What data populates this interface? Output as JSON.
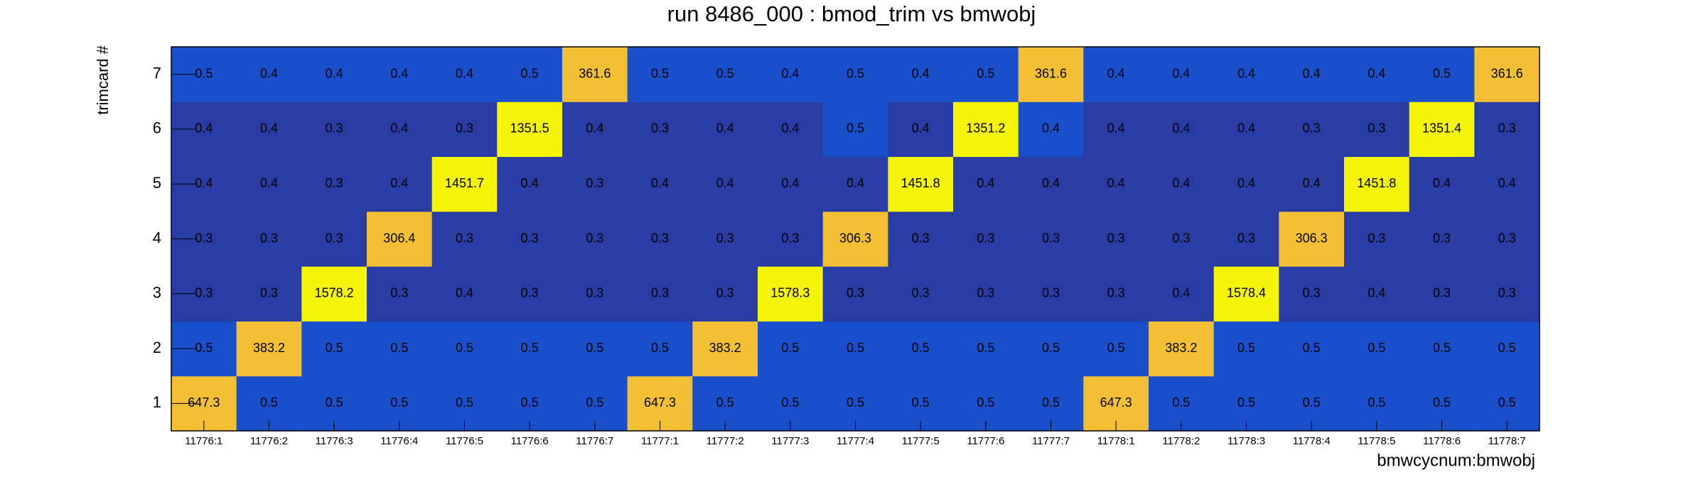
{
  "chart_data": {
    "type": "heatmap",
    "title": "run 8486_000 : bmod_trim vs bmwobj",
    "x_label": "bmwcycnum:bmwobj",
    "y_label": "trimcard #",
    "categories": [
      "11776:1",
      "11776:2",
      "11776:3",
      "11776:4",
      "11776:5",
      "11776:6",
      "11776:7",
      "11777:1",
      "11777:2",
      "11777:3",
      "11777:4",
      "11777:5",
      "11777:6",
      "11777:7",
      "11778:1",
      "11778:2",
      "11778:3",
      "11778:4",
      "11778:5",
      "11778:6",
      "11778:7"
    ],
    "y_categories": [
      1,
      2,
      3,
      4,
      5,
      6,
      7
    ],
    "values": [
      [
        647.3,
        0.5,
        0.5,
        0.5,
        0.5,
        0.5,
        0.5,
        647.3,
        0.5,
        0.5,
        0.5,
        0.5,
        0.5,
        0.5,
        647.3,
        0.5,
        0.5,
        0.5,
        0.5,
        0.5,
        0.5
      ],
      [
        0.5,
        383.2,
        0.5,
        0.5,
        0.5,
        0.5,
        0.5,
        0.5,
        383.2,
        0.5,
        0.5,
        0.5,
        0.5,
        0.5,
        0.5,
        383.2,
        0.5,
        0.5,
        0.5,
        0.5,
        0.5
      ],
      [
        0.3,
        0.3,
        1578.2,
        0.3,
        0.4,
        0.3,
        0.3,
        0.3,
        0.3,
        1578.3,
        0.3,
        0.3,
        0.3,
        0.3,
        0.3,
        0.4,
        1578.4,
        0.3,
        0.4,
        0.3,
        0.3
      ],
      [
        0.3,
        0.3,
        0.3,
        306.4,
        0.3,
        0.3,
        0.3,
        0.3,
        0.3,
        0.3,
        306.3,
        0.3,
        0.3,
        0.3,
        0.3,
        0.3,
        0.3,
        306.3,
        0.3,
        0.3,
        0.3
      ],
      [
        0.4,
        0.4,
        0.3,
        0.4,
        1451.7,
        0.4,
        0.3,
        0.4,
        0.4,
        0.4,
        0.4,
        1451.8,
        0.4,
        0.4,
        0.4,
        0.4,
        0.4,
        0.4,
        1451.8,
        0.4,
        0.4
      ],
      [
        0.4,
        0.4,
        0.3,
        0.4,
        0.3,
        1351.5,
        0.4,
        0.3,
        0.4,
        0.4,
        0.5,
        0.4,
        1351.2,
        0.4,
        0.4,
        0.4,
        0.4,
        0.3,
        0.3,
        1351.4,
        0.3
      ],
      [
        0.5,
        0.4,
        0.4,
        0.4,
        0.4,
        0.5,
        361.6,
        0.5,
        0.5,
        0.4,
        0.5,
        0.4,
        0.5,
        361.6,
        0.4,
        0.4,
        0.4,
        0.4,
        0.4,
        0.5,
        361.6
      ]
    ],
    "colors": [
      [
        "#f3c035",
        "#1a4fcc",
        "#1a4fcc",
        "#1a4fcc",
        "#1a4fcc",
        "#1a4fcc",
        "#1a4fcc",
        "#f3c035",
        "#1a4fcc",
        "#1a4fcc",
        "#1a4fcc",
        "#1a4fcc",
        "#1a4fcc",
        "#1a4fcc",
        "#f3c035",
        "#1a4fcc",
        "#1a4fcc",
        "#1a4fcc",
        "#1a4fcc",
        "#1a4fcc",
        "#1a4fcc"
      ],
      [
        "#1a4fcc",
        "#f3c035",
        "#1a4fcc",
        "#1a4fcc",
        "#1a4fcc",
        "#1a4fcc",
        "#1a4fcc",
        "#1a4fcc",
        "#f3c035",
        "#1a4fcc",
        "#1a4fcc",
        "#1a4fcc",
        "#1a4fcc",
        "#1a4fcc",
        "#1a4fcc",
        "#f3c035",
        "#1a4fcc",
        "#1a4fcc",
        "#1a4fcc",
        "#1a4fcc",
        "#1a4fcc"
      ],
      [
        "#283ca3",
        "#283ca3",
        "#f5f50a",
        "#283ca3",
        "#283ca3",
        "#283ca3",
        "#283ca3",
        "#283ca3",
        "#283ca3",
        "#f5f50a",
        "#283ca3",
        "#283ca3",
        "#283ca3",
        "#283ca3",
        "#283ca3",
        "#283ca3",
        "#f5f50a",
        "#283ca3",
        "#283ca3",
        "#283ca3",
        "#283ca3"
      ],
      [
        "#283ca3",
        "#283ca3",
        "#283ca3",
        "#f3c035",
        "#283ca3",
        "#283ca3",
        "#283ca3",
        "#283ca3",
        "#283ca3",
        "#283ca3",
        "#f3c035",
        "#283ca3",
        "#283ca3",
        "#283ca3",
        "#283ca3",
        "#283ca3",
        "#283ca3",
        "#f3c035",
        "#283ca3",
        "#283ca3",
        "#283ca3"
      ],
      [
        "#283ca3",
        "#283ca3",
        "#283ca3",
        "#283ca3",
        "#f5f50a",
        "#283ca3",
        "#283ca3",
        "#283ca3",
        "#283ca3",
        "#283ca3",
        "#283ca3",
        "#f5f50a",
        "#283ca3",
        "#283ca3",
        "#283ca3",
        "#283ca3",
        "#283ca3",
        "#283ca3",
        "#f5f50a",
        "#283ca3",
        "#283ca3"
      ],
      [
        "#283ca3",
        "#283ca3",
        "#283ca3",
        "#283ca3",
        "#283ca3",
        "#f5f50a",
        "#283ca3",
        "#283ca3",
        "#283ca3",
        "#283ca3",
        "#1a4fcc",
        "#283ca3",
        "#f5f50a",
        "#1a4fcc",
        "#283ca3",
        "#283ca3",
        "#283ca3",
        "#283ca3",
        "#283ca3",
        "#f5f50a",
        "#283ca3"
      ],
      [
        "#1a4fcc",
        "#1a4fcc",
        "#1a4fcc",
        "#1a4fcc",
        "#1a4fcc",
        "#1a4fcc",
        "#f3c035",
        "#1a4fcc",
        "#1a4fcc",
        "#1a4fcc",
        "#1a4fcc",
        "#1a4fcc",
        "#1a4fcc",
        "#f3c035",
        "#1a4fcc",
        "#1a4fcc",
        "#1a4fcc",
        "#1a4fcc",
        "#1a4fcc",
        "#1a4fcc",
        "#f3c035"
      ]
    ]
  }
}
